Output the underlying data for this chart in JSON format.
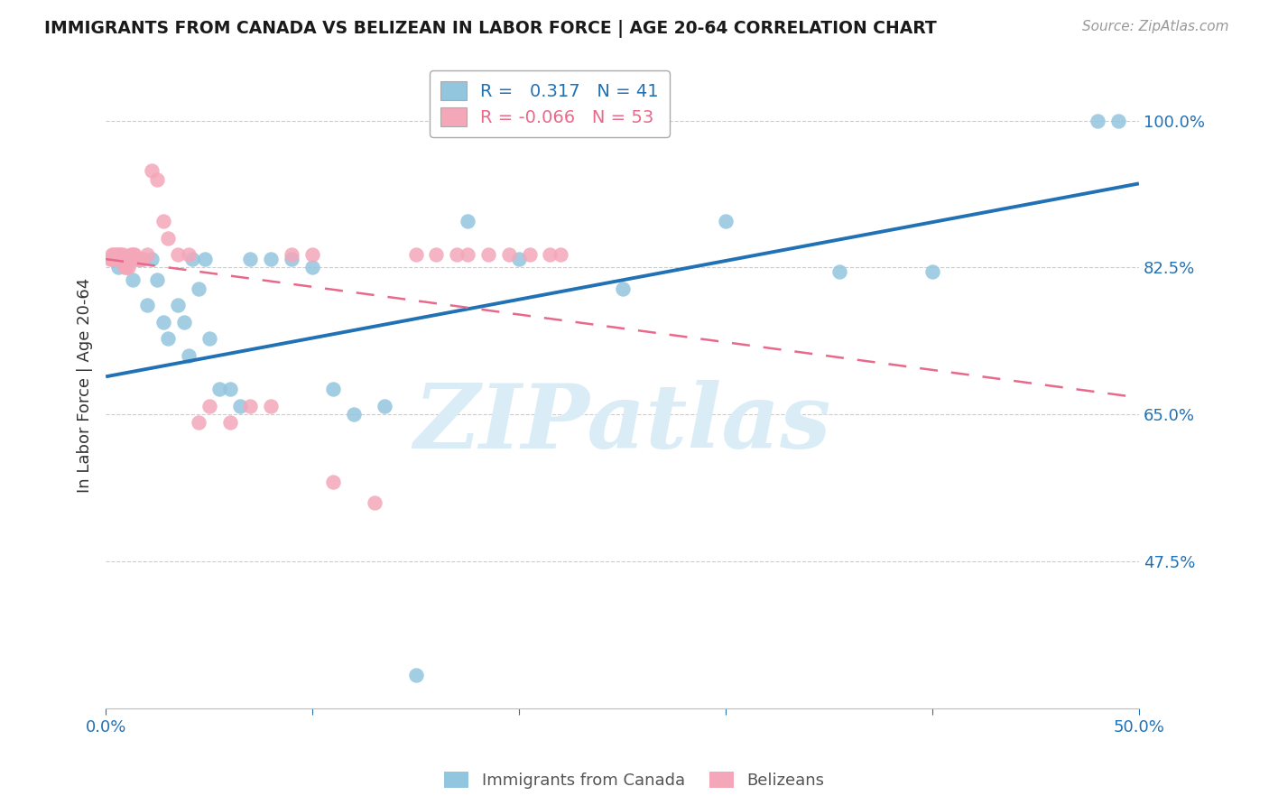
{
  "title": "IMMIGRANTS FROM CANADA VS BELIZEAN IN LABOR FORCE | AGE 20-64 CORRELATION CHART",
  "source": "Source: ZipAtlas.com",
  "ylabel": "In Labor Force | Age 20-64",
  "x_min": 0.0,
  "x_max": 0.5,
  "y_min": 0.3,
  "y_max": 1.07,
  "y_ticks": [
    0.475,
    0.65,
    0.825,
    1.0
  ],
  "y_tick_labels": [
    "47.5%",
    "65.0%",
    "82.5%",
    "100.0%"
  ],
  "legend_R1": "0.317",
  "legend_N1": "41",
  "legend_R2": "-0.066",
  "legend_N2": "53",
  "blue_color": "#92c5de",
  "pink_color": "#f4a7b9",
  "blue_line_color": "#2171b5",
  "pink_line_color": "#e8698a",
  "watermark": "ZIPatlas",
  "watermark_color": "#daedf7",
  "blue_line_x0": 0.0,
  "blue_line_y0": 0.695,
  "blue_line_x1": 0.5,
  "blue_line_y1": 0.925,
  "pink_line_x0": 0.0,
  "pink_line_y0": 0.835,
  "pink_line_x1": 0.5,
  "pink_line_y1": 0.67,
  "canada_x": [
    0.004,
    0.006,
    0.007,
    0.008,
    0.01,
    0.012,
    0.013,
    0.015,
    0.016,
    0.018,
    0.02,
    0.022,
    0.025,
    0.028,
    0.03,
    0.035,
    0.038,
    0.04,
    0.042,
    0.045,
    0.048,
    0.05,
    0.055,
    0.06,
    0.065,
    0.07,
    0.08,
    0.09,
    0.1,
    0.11,
    0.12,
    0.135,
    0.15,
    0.175,
    0.2,
    0.25,
    0.3,
    0.355,
    0.4,
    0.48,
    0.49
  ],
  "canada_y": [
    0.835,
    0.825,
    0.835,
    0.835,
    0.835,
    0.835,
    0.81,
    0.835,
    0.835,
    0.835,
    0.78,
    0.835,
    0.81,
    0.76,
    0.74,
    0.78,
    0.76,
    0.72,
    0.835,
    0.8,
    0.835,
    0.74,
    0.68,
    0.68,
    0.66,
    0.835,
    0.835,
    0.835,
    0.825,
    0.68,
    0.65,
    0.66,
    0.34,
    0.88,
    0.835,
    0.8,
    0.88,
    0.82,
    0.82,
    1.0,
    1.0
  ],
  "belize_x": [
    0.002,
    0.003,
    0.003,
    0.004,
    0.004,
    0.005,
    0.005,
    0.006,
    0.006,
    0.007,
    0.007,
    0.008,
    0.008,
    0.009,
    0.009,
    0.01,
    0.01,
    0.011,
    0.011,
    0.012,
    0.012,
    0.013,
    0.013,
    0.014,
    0.015,
    0.016,
    0.017,
    0.018,
    0.02,
    0.022,
    0.025,
    0.028,
    0.03,
    0.035,
    0.04,
    0.045,
    0.05,
    0.06,
    0.07,
    0.08,
    0.09,
    0.1,
    0.11,
    0.13,
    0.15,
    0.16,
    0.17,
    0.175,
    0.185,
    0.195,
    0.205,
    0.215,
    0.22
  ],
  "belize_y": [
    0.835,
    0.835,
    0.84,
    0.835,
    0.84,
    0.835,
    0.84,
    0.835,
    0.84,
    0.835,
    0.84,
    0.835,
    0.84,
    0.835,
    0.825,
    0.835,
    0.825,
    0.835,
    0.825,
    0.835,
    0.84,
    0.835,
    0.84,
    0.84,
    0.835,
    0.835,
    0.835,
    0.835,
    0.84,
    0.94,
    0.93,
    0.88,
    0.86,
    0.84,
    0.84,
    0.64,
    0.66,
    0.64,
    0.66,
    0.66,
    0.84,
    0.84,
    0.57,
    0.545,
    0.84,
    0.84,
    0.84,
    0.84,
    0.84,
    0.84,
    0.84,
    0.84,
    0.84
  ]
}
